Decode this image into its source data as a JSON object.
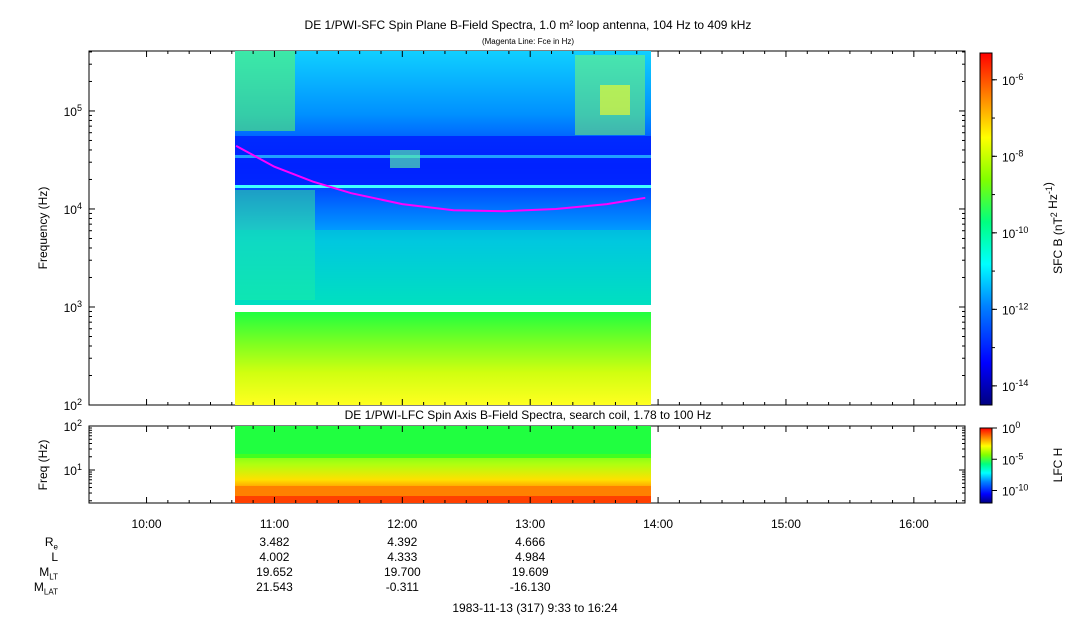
{
  "chart_data": [
    {
      "type": "heatmap",
      "title": "DE 1/PWI-SFC  Spin Plane B-Field Spectra, 1.0 m² loop antenna, 104 Hz to 409 kHz",
      "subtitle": "(Magenta Line: Fce in Hz)",
      "ylabel": "Frequency (Hz)",
      "y_scale": "log",
      "ylim": [
        100,
        409000
      ],
      "y_ticks": [
        "10^2",
        "10^3",
        "10^4",
        "10^5"
      ],
      "xlim_hours": [
        9.55,
        16.4
      ],
      "data_time_range_hours": [
        10.7,
        13.92
      ],
      "colorbar": {
        "label": "SFC B (nT^2 Hz^-1)",
        "scale": "log",
        "range": [
          -14.5,
          -5.3
        ],
        "ticks": [
          "10^-14",
          "10^-12",
          "10^-10",
          "10^-8",
          "10^-6"
        ]
      },
      "overlay_line": {
        "name": "Fce in Hz",
        "color": "#ff00ff",
        "points": [
          [
            10.7,
            44000
          ],
          [
            11.0,
            27000
          ],
          [
            11.3,
            19000
          ],
          [
            11.6,
            14500
          ],
          [
            12.0,
            11200
          ],
          [
            12.4,
            9700
          ],
          [
            12.8,
            9500
          ],
          [
            13.2,
            10000
          ],
          [
            13.6,
            11200
          ],
          [
            13.9,
            13000
          ]
        ]
      }
    },
    {
      "type": "heatmap",
      "title": "DE 1/PWI-LFC  Spin Axis B-Field Spectra, search coil, 1.78 to 100 Hz",
      "ylabel": "Freq (Hz)",
      "y_scale": "log",
      "ylim": [
        1.78,
        100
      ],
      "y_ticks": [
        "10^1",
        "10^2"
      ],
      "colorbar": {
        "label": "LFC H",
        "scale": "log",
        "range": [
          -12,
          0
        ],
        "ticks": [
          "10^-10",
          "10^-5",
          "10^0"
        ]
      }
    }
  ],
  "time_axis": {
    "ticks": [
      "10:00",
      "11:00",
      "12:00",
      "13:00",
      "14:00",
      "15:00",
      "16:00"
    ],
    "tick_hours": [
      10,
      11,
      12,
      13,
      14,
      15,
      16
    ]
  },
  "ephemeris": {
    "rows": [
      {
        "label": "R",
        "sub": "e",
        "values": [
          "3.482",
          "4.392",
          "4.666"
        ]
      },
      {
        "label": "L",
        "sub": "",
        "values": [
          "4.002",
          "4.333",
          "4.984"
        ]
      },
      {
        "label": "M",
        "sub": "LT",
        "values": [
          "19.652",
          "19.700",
          "19.609"
        ]
      },
      {
        "label": "M",
        "sub": "LAT",
        "values": [
          "21.543",
          "-0.311",
          "-16.130"
        ]
      }
    ]
  },
  "date_range": "1983-11-13 (317) 9:33 to 16:24",
  "colors": {
    "fce_line": "#ff00ff",
    "colormap": [
      "#000080",
      "#0000ff",
      "#00a0ff",
      "#00ffff",
      "#00ff80",
      "#80ff00",
      "#ffff00",
      "#ff8000",
      "#ff0000"
    ]
  }
}
